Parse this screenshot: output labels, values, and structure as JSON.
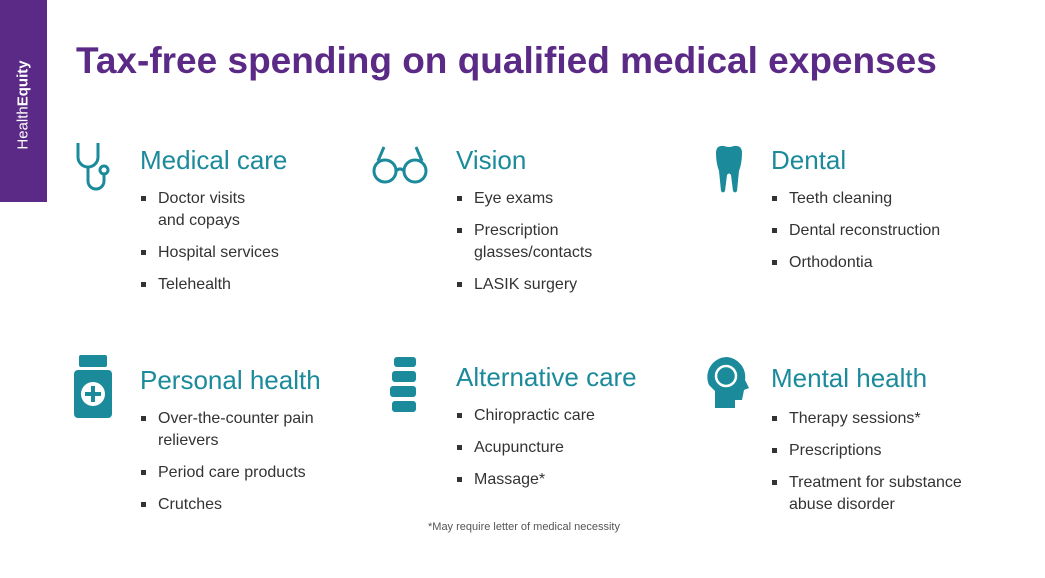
{
  "brand": {
    "light": "Health",
    "bold": "Equity"
  },
  "title": "Tax-free spending on qualified medical expenses",
  "sections": [
    {
      "heading": "Medical care",
      "items": [
        [
          "Doctor visits",
          "and copays"
        ],
        [
          "Hospital services"
        ],
        [
          "Telehealth"
        ]
      ]
    },
    {
      "heading": "Vision",
      "items": [
        [
          "Eye exams"
        ],
        [
          "Prescription",
          "glasses/contacts"
        ],
        [
          "LASIK surgery"
        ]
      ]
    },
    {
      "heading": "Dental",
      "items": [
        [
          "Teeth cleaning"
        ],
        [
          "Dental reconstruction"
        ],
        [
          "Orthodontia"
        ]
      ]
    },
    {
      "heading": "Personal health",
      "items": [
        [
          "Over-the-counter pain",
          "relievers"
        ],
        [
          "Period care products"
        ],
        [
          "Crutches"
        ]
      ]
    },
    {
      "heading": "Alternative care",
      "items": [
        [
          "Chiropractic care"
        ],
        [
          "Acupuncture"
        ],
        [
          "Massage*"
        ]
      ]
    },
    {
      "heading": "Mental health",
      "items": [
        [
          "Therapy sessions*"
        ],
        [
          "Prescriptions"
        ],
        [
          "Treatment for substance",
          "abuse disorder"
        ]
      ]
    }
  ],
  "footnote": "*May require letter of medical necessity"
}
